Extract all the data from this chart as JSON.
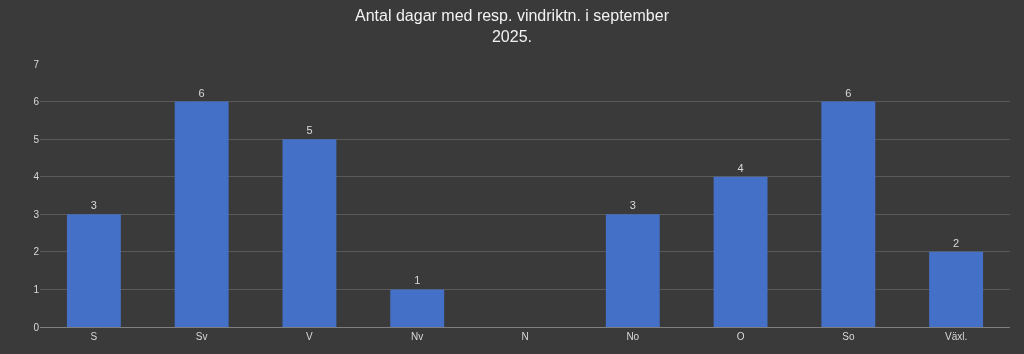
{
  "chart_data": {
    "type": "bar",
    "title": "Antal dagar med resp. vindriktn. i september\n2025.",
    "categories": [
      "S",
      "Sv",
      "V",
      "Nv",
      "N",
      "No",
      "O",
      "So",
      "Växl."
    ],
    "values": [
      3,
      6,
      5,
      1,
      0,
      3,
      4,
      6,
      2
    ],
    "value_labels": [
      "3",
      "6",
      "5",
      "1",
      null,
      "3",
      "4",
      "6",
      "2"
    ],
    "color": "#4471c7",
    "ylim": [
      0,
      7
    ],
    "yticks": [
      0,
      1,
      2,
      3,
      4,
      5,
      6,
      7
    ],
    "grid": "y",
    "legend": false
  }
}
